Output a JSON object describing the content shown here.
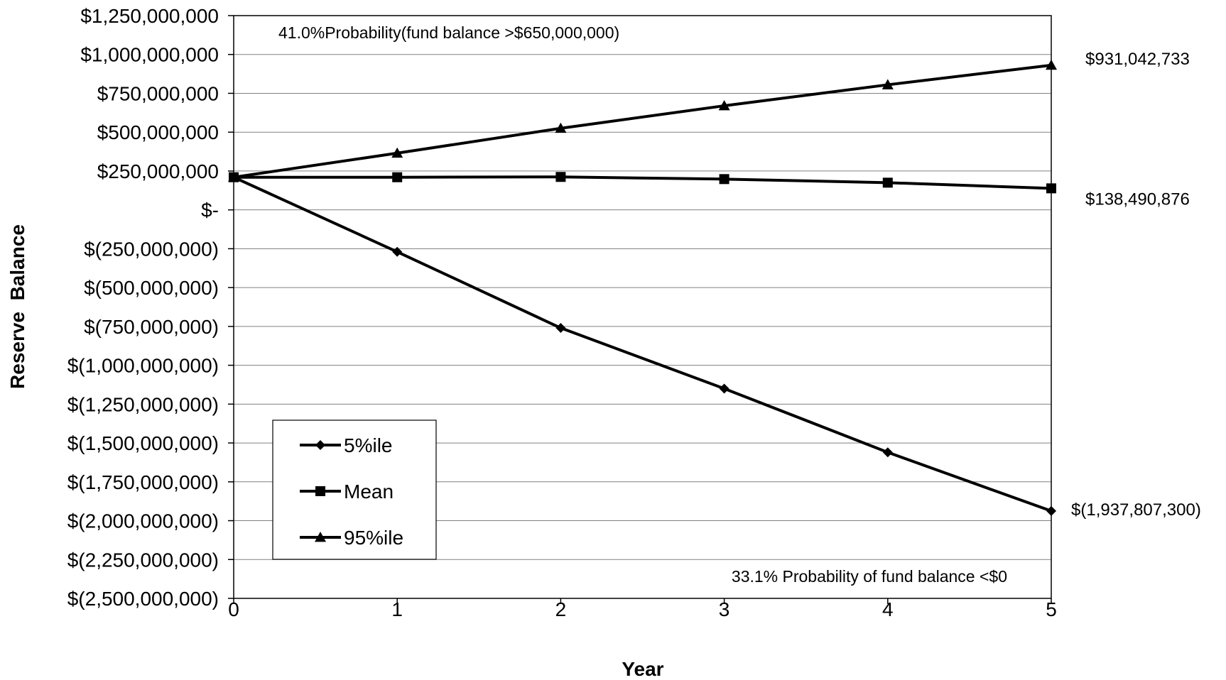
{
  "chart_data": {
    "type": "line",
    "title": "",
    "xlabel": "Year",
    "ylabel": "Reserve  Balance",
    "x": [
      0,
      1,
      2,
      3,
      4,
      5
    ],
    "x_tick_labels": [
      "0",
      "1",
      "2",
      "3",
      "4",
      "5"
    ],
    "ylim": [
      -2500000000,
      1250000000
    ],
    "y_ticks": [
      1250000000,
      1000000000,
      750000000,
      500000000,
      250000000,
      0,
      -250000000,
      -500000000,
      -750000000,
      -1000000000,
      -1250000000,
      -1500000000,
      -1750000000,
      -2000000000,
      -2250000000,
      -2500000000
    ],
    "y_tick_labels": [
      "$1,250,000,000",
      "$1,000,000,000",
      "$750,000,000",
      "$500,000,000",
      "$250,000,000",
      "$-",
      "$(250,000,000)",
      "$(500,000,000)",
      "$(750,000,000)",
      "$(1,000,000,000)",
      "$(1,250,000,000)",
      "$(1,500,000,000)",
      "$(1,750,000,000)",
      "$(2,000,000,000)",
      "$(2,250,000,000)",
      "$(2,500,000,000)"
    ],
    "grid": true,
    "legend_position": "bottom-left",
    "series": [
      {
        "name": "5%ile",
        "marker": "diamond",
        "values": [
          210000000,
          -270000000,
          -760000000,
          -1150000000,
          -1560000000,
          -1937807300
        ],
        "end_label": "$(1,937,807,300)"
      },
      {
        "name": "Mean",
        "marker": "square",
        "values": [
          210000000,
          210000000,
          212000000,
          198000000,
          175000000,
          138490876
        ],
        "end_label": "$138,490,876"
      },
      {
        "name": "95%ile",
        "marker": "triangle",
        "values": [
          210000000,
          365000000,
          525000000,
          670000000,
          805000000,
          931042733
        ],
        "end_label": "$931,042,733"
      }
    ],
    "annotations": {
      "top": "41.0%Probability(fund balance >$650,000,000)",
      "bottom": "33.1% Probability of fund balance <$0"
    },
    "colors": {
      "line": "#000000",
      "grid": "#808080",
      "background": "#ffffff"
    }
  }
}
